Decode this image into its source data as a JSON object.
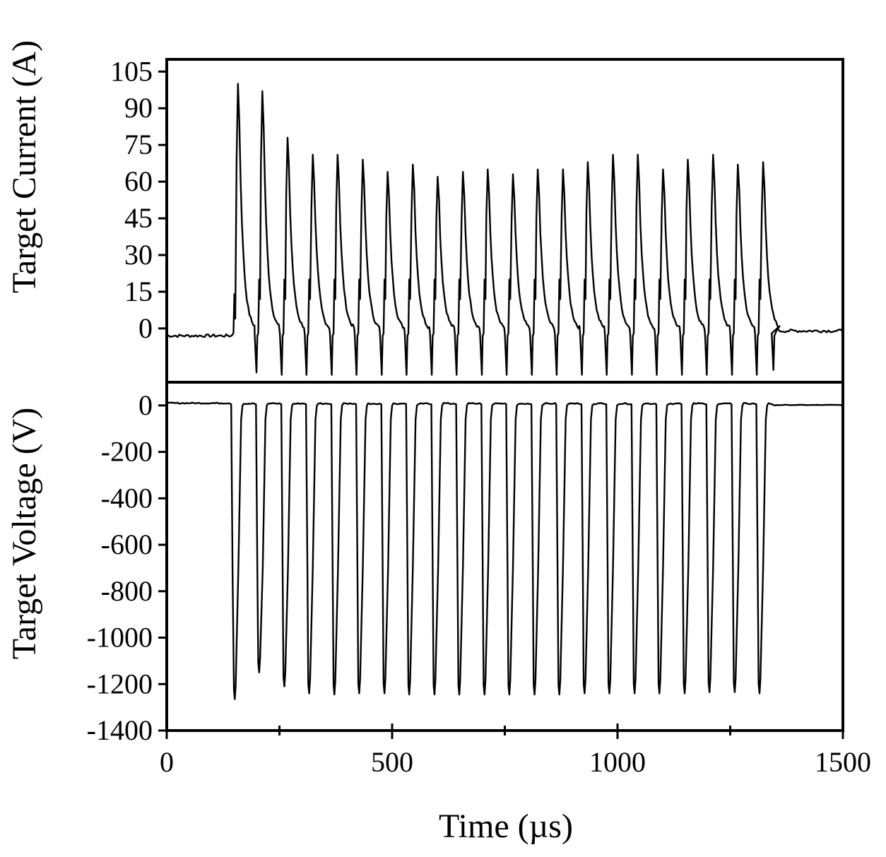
{
  "chart_data": [
    {
      "type": "line",
      "panel": "top",
      "title": "",
      "xlabel": "",
      "ylabel": "Target Current (A)",
      "xlim": [
        0,
        1500
      ],
      "ylim": [
        -22,
        110
      ],
      "yticks": [
        0,
        15,
        30,
        45,
        60,
        75,
        90,
        105
      ],
      "ytick_labels": [
        "0",
        "15",
        "30",
        "45",
        "60",
        "75",
        "90",
        "105"
      ],
      "baseline_before": -3,
      "baseline_after": 0,
      "pulse_period_us": 55.5,
      "series": [
        {
          "name": "Target Current",
          "pulse_start_times": [
            148,
            203,
            259,
            314,
            370,
            425,
            481,
            536,
            592,
            647,
            703,
            758,
            814,
            869,
            925,
            980,
            1036,
            1091,
            1147,
            1202,
            1258,
            1313
          ],
          "peak_times": [
            158,
            212,
            268,
            324,
            379,
            435,
            490,
            546,
            601,
            657,
            712,
            768,
            823,
            879,
            934,
            990,
            1045,
            1101,
            1156,
            1212,
            1267,
            1323
          ],
          "peak_values": [
            100,
            97,
            78,
            71,
            71,
            69,
            64,
            67,
            62,
            64,
            65,
            63,
            65,
            65,
            68,
            71,
            71,
            65,
            69,
            71,
            67,
            68
          ],
          "undershoot_values": [
            -18,
            -19,
            -19,
            -19,
            -19,
            -19,
            -19,
            -19,
            -19,
            -19,
            -19,
            -19,
            -19,
            -19,
            -19,
            -19,
            -19,
            -19,
            -19,
            -19,
            -19,
            -17
          ],
          "end_time": 1350
        }
      ]
    },
    {
      "type": "line",
      "panel": "bottom",
      "title": "",
      "xlabel": "Time (µs)",
      "ylabel": "Target Voltage (V)",
      "xlim": [
        0,
        1500
      ],
      "ylim": [
        -1400,
        100
      ],
      "xticks": [
        0,
        500,
        1000,
        1500
      ],
      "xtick_labels": [
        "0",
        "500",
        "1000",
        "1500"
      ],
      "yticks": [
        0,
        -200,
        -400,
        -600,
        -800,
        -1000,
        -1200,
        -1400
      ],
      "ytick_labels": [
        "0",
        "-200",
        "-400",
        "-600",
        "-800",
        "-1000",
        "-1200",
        "-1400"
      ],
      "baseline_before": 10,
      "baseline_after": 0,
      "series": [
        {
          "name": "Target Voltage",
          "pulse_start_times": [
            143,
            198,
            254,
            309,
            365,
            420,
            476,
            531,
            587,
            642,
            698,
            753,
            809,
            864,
            920,
            975,
            1031,
            1086,
            1142,
            1197,
            1253,
            1308
          ],
          "min_times": [
            151,
            205,
            261,
            316,
            372,
            427,
            483,
            538,
            594,
            649,
            705,
            760,
            816,
            871,
            927,
            982,
            1038,
            1093,
            1149,
            1204,
            1260,
            1315
          ],
          "min_values": [
            -1265,
            -1150,
            -1210,
            -1240,
            -1245,
            -1240,
            -1240,
            -1245,
            -1245,
            -1245,
            -1245,
            -1245,
            -1245,
            -1245,
            -1240,
            -1240,
            -1240,
            -1240,
            -1240,
            -1235,
            -1235,
            -1240
          ],
          "end_time": 1345
        }
      ]
    }
  ]
}
